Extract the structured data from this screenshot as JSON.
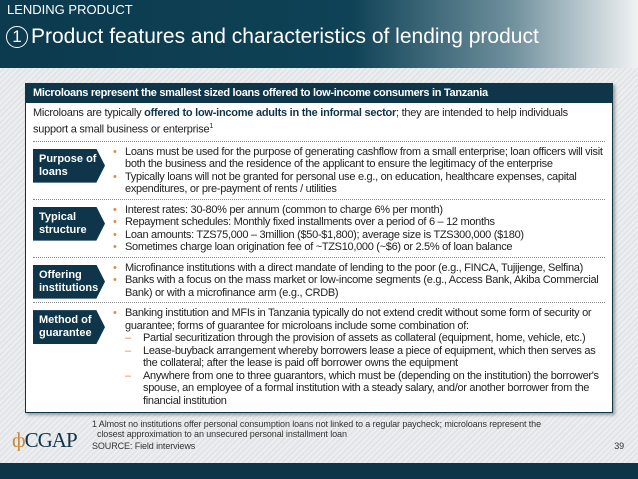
{
  "header": {
    "section": "LENDING PRODUCT",
    "number": "1",
    "title": "Product features and characteristics of lending product"
  },
  "box": {
    "heading": "Microloans represent the smallest sized loans offered to low-income consumers in Tanzania",
    "intro_pre": "Microloans are typically ",
    "intro_bold": "offered to low-income adults in the informal sector",
    "intro_post": "; they are intended to help individuals support a small business or enterprise",
    "intro_sup": "1",
    "rows": [
      {
        "label": "Purpose of loans",
        "items": [
          "Loans must be used for the purpose of generating cashflow from a small enterprise; loan officers will visit both the business and the residence of the applicant to ensure the legitimacy of the enterprise",
          "Typically loans will not be granted for personal use e.g., on education, healthcare expenses, capital expenditures, or pre-payment of rents / utilities"
        ]
      },
      {
        "label": "Typical structure",
        "items": [
          "Interest rates: 30-80% per annum (common to charge 6% per month)",
          "Repayment schedules: Monthly fixed installments over a period of 6 – 12 months",
          "Loan amounts: TZS75,000 – 3million ($50-$1,800); average size is TZS300,000 ($180)",
          "Sometimes charge loan origination fee of ~TZS10,000 (~$6) or 2.5% of loan balance"
        ]
      },
      {
        "label": "Offering institutions",
        "items": [
          "Microfinance institutions with a direct mandate of lending to the poor (e.g., FINCA, Tujijenge, Selfina)",
          "Banks with a focus on the mass market or low-income segments (e.g., Access Bank, Akiba Commercial Bank) or with a microfinance arm (e.g., CRDB)"
        ]
      },
      {
        "label": "Method of guarantee",
        "items": [
          "Banking institution and MFIs in Tanzania typically do not extend credit without some form of security or guarantee; forms of guarantee for microloans include some combination of:"
        ],
        "subitems": [
          "Partial securitization through the provision of assets as collateral (equipment, home, vehicle, etc.)",
          "Lease-buyback arrangement whereby borrowers lease a piece of equipment, which then serves as the collateral; after the lease is paid off borrower owns the equipment",
          "Anywhere from one to three guarantors, which must be (depending on the institution) the borrower's spouse, an employee of a formal institution with a steady salary, and/or another borrower from the financial institution"
        ]
      }
    ]
  },
  "footer": {
    "note": "1 Almost no institutions offer personal consumption loans not linked to a regular paycheck; microloans represent the closest approximation to an unsecured personal installment loan",
    "source": "SOURCE: Field interviews",
    "page": "39",
    "logo": "CGAP"
  }
}
